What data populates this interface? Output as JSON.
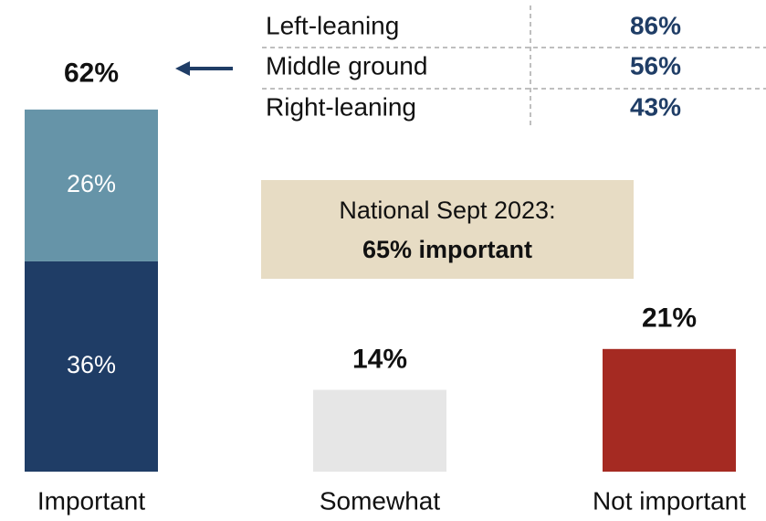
{
  "chart_data": {
    "type": "bar",
    "categories": [
      "Important",
      "Somewhat",
      "Not important"
    ],
    "series": [
      {
        "values": [
          36,
          14,
          21
        ],
        "colors": [
          "#1f3d66",
          "#e6e6e6",
          "#a52a22"
        ],
        "value_labels": [
          "36%",
          "14%",
          "21%"
        ]
      },
      {
        "values": [
          26,
          null,
          null
        ],
        "colors": [
          "#6694a8",
          null,
          null
        ],
        "value_labels": [
          "26%",
          null,
          null
        ]
      }
    ],
    "totals": [
      62,
      null,
      null
    ],
    "total_labels": [
      "62%",
      null,
      null
    ]
  },
  "breakdown": {
    "rows": [
      {
        "label": "Left-leaning",
        "value": "86%"
      },
      {
        "label": "Middle ground",
        "value": "56%"
      },
      {
        "label": "Right-leaning",
        "value": "43%"
      }
    ]
  },
  "callout": {
    "line1": "National Sept 2023:",
    "line2": "65% important"
  }
}
